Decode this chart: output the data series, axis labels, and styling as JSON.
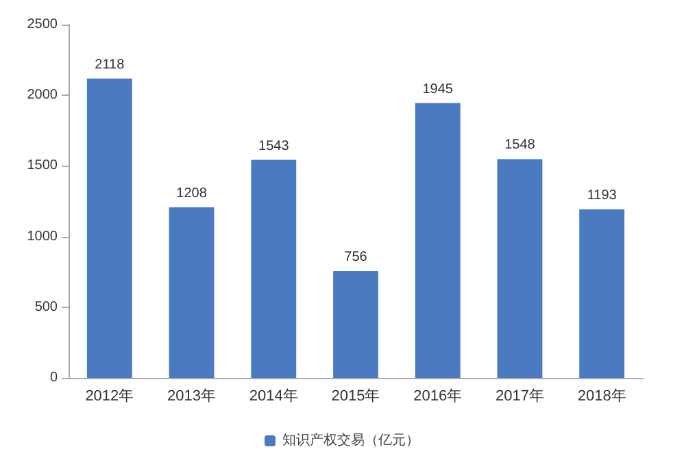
{
  "chart_data": {
    "type": "bar",
    "categories": [
      "2012年",
      "2013年",
      "2014年",
      "2015年",
      "2016年",
      "2017年",
      "2018年"
    ],
    "series": [
      {
        "name": "知识产权交易（亿元）",
        "color": "#4a7ac0",
        "values": [
          2118,
          1208,
          1543,
          756,
          1945,
          1548,
          1193
        ]
      }
    ],
    "ylim": [
      0,
      2500
    ],
    "yticks": [
      0,
      500,
      1000,
      1500,
      2000,
      2500
    ],
    "grid": false,
    "legend": "bottom",
    "data_labels": true
  }
}
